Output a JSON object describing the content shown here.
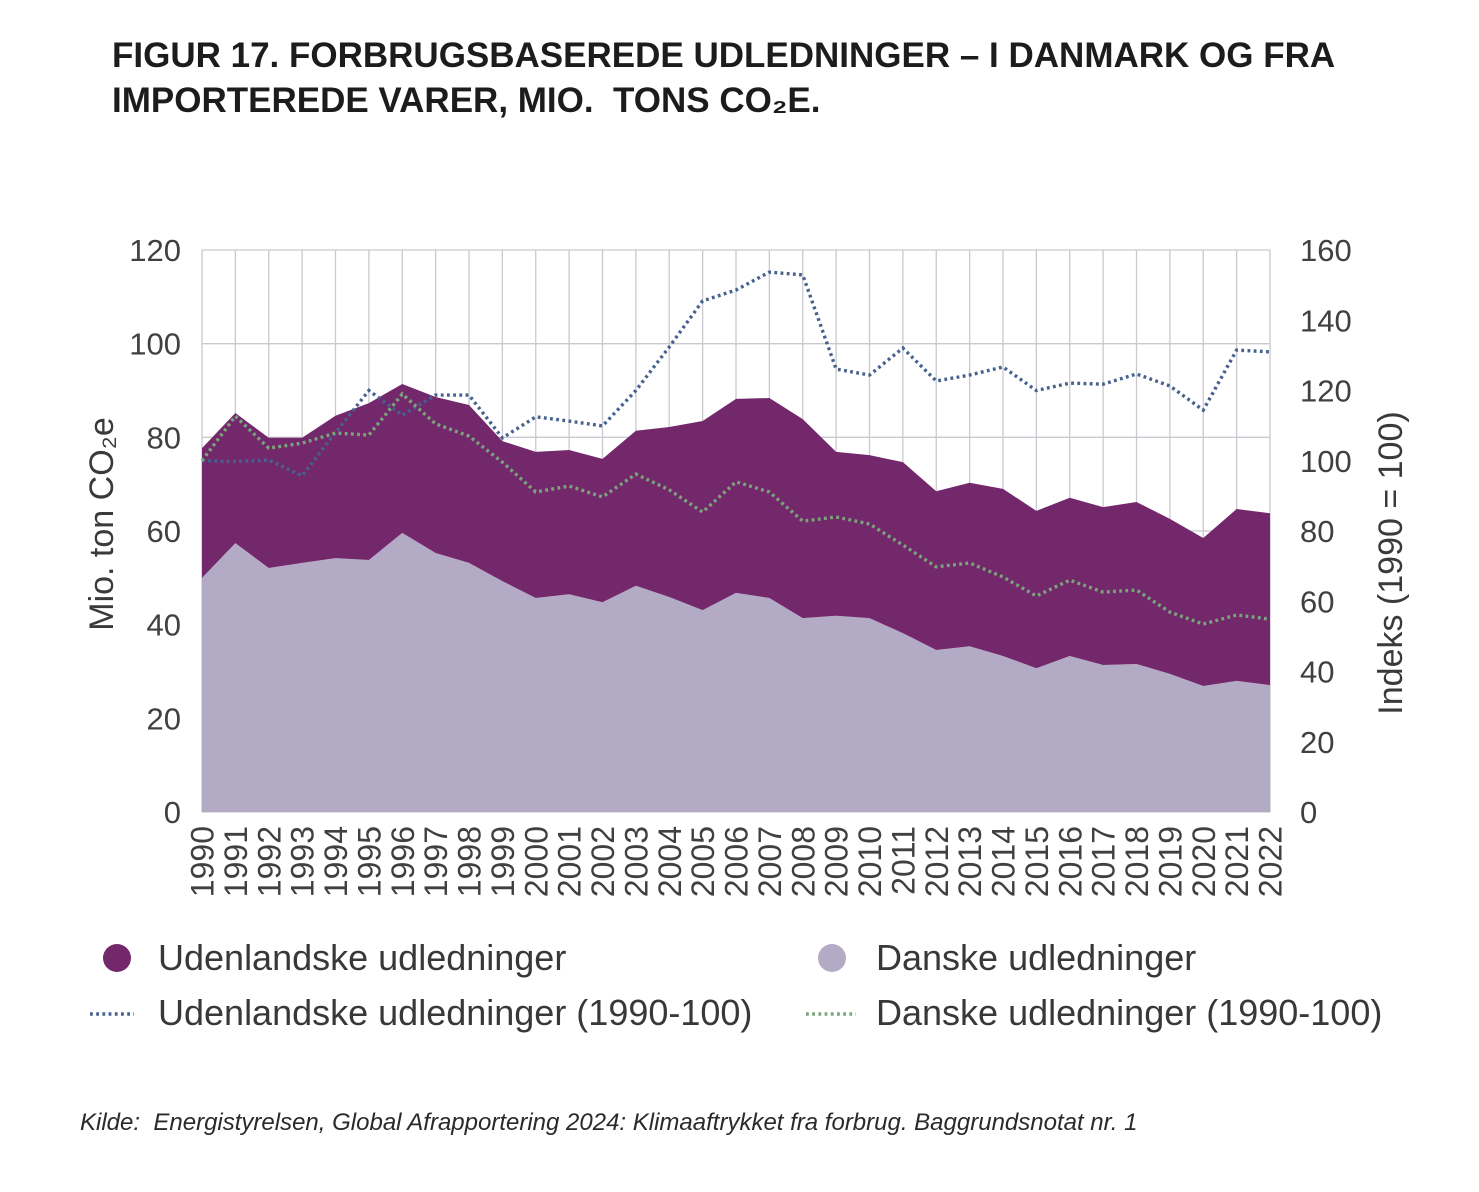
{
  "title": {
    "lines": [
      "FIGUR 17. FORBRUGSBASEREDE UDLEDNINGER – I DANMARK OG FRA",
      "IMPORTEREDE VARER, MIO.  TONS CO₂E."
    ]
  },
  "chart_data": {
    "type": "area",
    "x": [
      1990,
      1991,
      1992,
      1993,
      1994,
      1995,
      1996,
      1997,
      1998,
      1999,
      2000,
      2001,
      2002,
      2003,
      2004,
      2005,
      2006,
      2007,
      2008,
      2009,
      2010,
      2011,
      2012,
      2013,
      2014,
      2015,
      2016,
      2017,
      2018,
      2019,
      2020,
      2021,
      2022
    ],
    "y_left": {
      "label": "Mio. ton CO₂e",
      "range": [
        0,
        120
      ],
      "ticks": [
        0,
        20,
        40,
        60,
        80,
        100,
        120
      ]
    },
    "y_right": {
      "label": "Indeks (1990 = 100)",
      "range": [
        0,
        160
      ],
      "ticks": [
        0,
        20,
        40,
        60,
        80,
        100,
        120,
        140,
        160
      ]
    },
    "series": [
      {
        "name": "Danske udledninger",
        "type": "area",
        "stacked": true,
        "axis": "left",
        "color": "#b3abc6",
        "values": [
          50.0,
          57.4,
          52.1,
          53.2,
          54.2,
          53.8,
          59.6,
          55.3,
          53.2,
          49.3,
          45.7,
          46.5,
          44.8,
          48.3,
          45.9,
          43.1,
          46.8,
          45.7,
          41.4,
          41.9,
          41.4,
          38.2,
          34.6,
          35.4,
          33.3,
          30.7,
          33.3,
          31.4,
          31.6,
          29.5,
          26.9,
          28.0,
          27.1
        ]
      },
      {
        "name": "Udenlandske udledninger",
        "type": "area",
        "stacked": true,
        "axis": "left",
        "color": "#74286c",
        "values": [
          27.7,
          27.8,
          27.8,
          26.7,
          30.4,
          33.5,
          31.8,
          33.3,
          33.7,
          29.9,
          31.2,
          30.8,
          30.6,
          33.1,
          36.3,
          40.4,
          41.4,
          42.7,
          42.5,
          35.0,
          34.8,
          36.5,
          33.9,
          34.9,
          35.7,
          33.6,
          33.8,
          33.7,
          34.6,
          33.1,
          31.6,
          36.7,
          36.7
        ]
      },
      {
        "name": "Udenlandske udledninger (1990-100)",
        "type": "line",
        "style": "dotted",
        "axis": "right",
        "color": "#46618f",
        "values": [
          100.0,
          99.8,
          100.2,
          95.7,
          108.0,
          120.0,
          113.0,
          118.7,
          118.7,
          106.5,
          112.5,
          111.3,
          109.9,
          120.0,
          132.4,
          145.5,
          148.6,
          153.7,
          152.9,
          126.1,
          124.4,
          132.1,
          122.7,
          124.4,
          126.7,
          120.0,
          122.1,
          121.8,
          124.7,
          121.3,
          114.4,
          131.5,
          131.0
        ]
      },
      {
        "name": "Danske udledninger (1990-100)",
        "type": "line",
        "style": "dotted",
        "axis": "right",
        "color": "#7aa57a",
        "values": [
          100.0,
          112.7,
          103.6,
          105.0,
          107.9,
          107.3,
          119.0,
          110.5,
          107.0,
          99.6,
          91.1,
          92.8,
          89.7,
          96.2,
          91.7,
          85.4,
          94.0,
          91.1,
          82.8,
          84.0,
          82.0,
          76.0,
          69.8,
          70.9,
          66.9,
          61.5,
          66.0,
          62.6,
          63.2,
          56.9,
          53.5,
          56.1,
          54.9
        ]
      }
    ],
    "grid": true,
    "legend_position": "bottom"
  },
  "source": "Kilde:  Energistyrelsen, Global Afrapportering 2024: Klimaaftrykket fra forbrug. Baggrundsnotat nr. 1"
}
